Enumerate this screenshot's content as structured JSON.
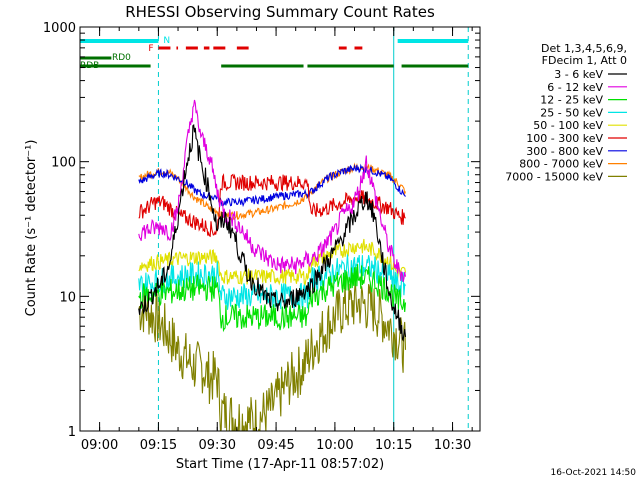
{
  "chart_data": {
    "type": "line",
    "title": "RHESSI Observing Summary Count Rates",
    "xlabel": "Start Time (17-Apr-11 08:57:02)",
    "ylabel": "Count Rate (s⁻¹ detector⁻¹)",
    "scale": "log",
    "xlim": [
      "08:55",
      "10:37"
    ],
    "ylim": [
      1,
      1000
    ],
    "xticks": [
      "09:00",
      "09:15",
      "09:30",
      "09:45",
      "10:00",
      "10:15",
      "10:30"
    ],
    "yticks": [
      "1",
      "10",
      "100",
      "1000"
    ],
    "legend_header": [
      "Det 1,3,4,5,6,9,",
      "FDecim 1, Att 0"
    ],
    "legend_position": "right",
    "timestamp": "16-Oct-2021 14:50",
    "state_bars": {
      "N": {
        "label": "N",
        "color": "#00e5e5",
        "segments": [
          [
            "08:55",
            "09:15"
          ],
          [
            "10:16",
            "10:34"
          ]
        ]
      },
      "F": {
        "label": "F",
        "color": "#e00000",
        "segments": [
          [
            "09:15",
            "09:20"
          ],
          [
            "09:22",
            "09:28"
          ],
          [
            "09:29",
            "09:33"
          ],
          [
            "09:35",
            "09:38"
          ],
          [
            "10:01",
            "10:03"
          ],
          [
            "10:05",
            "10:07"
          ]
        ]
      },
      "RD0": {
        "label": "RD0",
        "color": "#007000",
        "segments": [
          [
            "08:55",
            "09:03"
          ]
        ]
      },
      "RDB": {
        "label": "RDB",
        "color": "#007000",
        "segments": [
          [
            "08:55",
            "09:13"
          ],
          [
            "09:31",
            "09:52"
          ],
          [
            "09:53",
            "10:15"
          ],
          [
            "10:17",
            "10:34"
          ]
        ]
      }
    },
    "vlines": [
      "09:15",
      "10:15",
      "10:34"
    ],
    "series": [
      {
        "name": "3 - 6 keV",
        "color": "#000000",
        "x": [
          "09:10",
          "09:12",
          "09:14",
          "09:16",
          "09:18",
          "09:20",
          "09:22",
          "09:24",
          "09:26",
          "09:28",
          "09:30",
          "09:32",
          "09:34",
          "09:36",
          "09:38",
          "09:40",
          "09:42",
          "09:44",
          "09:46",
          "09:48",
          "09:50",
          "09:52",
          "09:54",
          "09:56",
          "09:58",
          "10:00",
          "10:02",
          "10:04",
          "10:06",
          "10:08",
          "10:10",
          "10:12",
          "10:14",
          "10:16",
          "10:18"
        ],
        "values": [
          8,
          9,
          11,
          13,
          18,
          40,
          90,
          170,
          95,
          60,
          32,
          38,
          30,
          20,
          14,
          12,
          10,
          9,
          9,
          9,
          10,
          11,
          12,
          15,
          18,
          22,
          28,
          35,
          45,
          55,
          40,
          20,
          10,
          7,
          5
        ]
      },
      {
        "name": "6 - 12 keV",
        "color": "#e000e0",
        "x": [
          "09:10",
          "09:12",
          "09:14",
          "09:16",
          "09:18",
          "09:20",
          "09:22",
          "09:24",
          "09:26",
          "09:28",
          "09:30",
          "09:32",
          "09:34",
          "09:36",
          "09:38",
          "09:40",
          "09:42",
          "09:44",
          "09:46",
          "09:48",
          "09:50",
          "09:52",
          "09:54",
          "09:56",
          "09:58",
          "10:00",
          "10:02",
          "10:04",
          "10:06",
          "10:08",
          "10:10",
          "10:12",
          "10:14",
          "10:16",
          "10:18"
        ],
        "values": [
          30,
          31,
          32,
          33,
          30,
          45,
          120,
          270,
          150,
          110,
          60,
          40,
          38,
          32,
          26,
          22,
          20,
          18,
          17,
          17,
          17,
          18,
          19,
          21,
          25,
          30,
          40,
          45,
          60,
          100,
          60,
          35,
          22,
          16,
          14
        ]
      },
      {
        "name": "12 - 25 keV",
        "color": "#00e000",
        "x": [
          "09:10",
          "09:15",
          "09:20",
          "09:25",
          "09:30",
          "09:31",
          "09:35",
          "09:40",
          "09:45",
          "09:50",
          "09:53",
          "09:54",
          "09:58",
          "10:02",
          "10:06",
          "10:10",
          "10:14",
          "10:16",
          "10:18"
        ],
        "values": [
          10,
          10.5,
          11,
          11.5,
          11.5,
          7,
          7,
          7,
          7,
          7,
          7,
          10,
          11.5,
          13,
          14,
          13,
          11,
          9,
          9
        ]
      },
      {
        "name": "25 - 50 keV",
        "color": "#00e5e5",
        "x": [
          "09:10",
          "09:15",
          "09:20",
          "09:25",
          "09:30",
          "09:31",
          "09:35",
          "09:40",
          "09:45",
          "09:50",
          "09:53",
          "09:54",
          "09:58",
          "10:02",
          "10:06",
          "10:10",
          "10:14",
          "10:16",
          "10:18"
        ],
        "values": [
          12,
          13,
          14,
          14.5,
          14.5,
          10,
          10,
          10,
          10,
          10,
          10,
          13,
          14.5,
          16,
          17,
          16,
          14,
          12,
          12
        ]
      },
      {
        "name": "50 - 100 keV",
        "color": "#e0e000",
        "x": [
          "09:10",
          "09:15",
          "09:20",
          "09:25",
          "09:30",
          "09:31",
          "09:35",
          "09:40",
          "09:45",
          "09:50",
          "09:53",
          "09:54",
          "09:58",
          "10:02",
          "10:06",
          "10:10",
          "10:14",
          "10:16",
          "10:18"
        ],
        "values": [
          17,
          18,
          19,
          19.5,
          19.5,
          14,
          14,
          14,
          14,
          14,
          14,
          18,
          20,
          22,
          24,
          22,
          18,
          15,
          15
        ]
      },
      {
        "name": "100 - 300 keV",
        "color": "#e00000",
        "x": [
          "09:10",
          "09:12",
          "09:14",
          "09:16",
          "09:18",
          "09:20",
          "09:22",
          "09:24",
          "09:26",
          "09:28",
          "09:30",
          "09:31",
          "09:35",
          "09:40",
          "09:45",
          "09:50",
          "09:53",
          "09:54",
          "09:58",
          "10:02",
          "10:06",
          "10:10",
          "10:14",
          "10:16",
          "10:18"
        ],
        "values": [
          42,
          45,
          50,
          50,
          45,
          40,
          38,
          36,
          34,
          32,
          30,
          70,
          70,
          70,
          70,
          70,
          70,
          42,
          45,
          50,
          55,
          50,
          45,
          40,
          38
        ]
      },
      {
        "name": "300 - 800 keV",
        "color": "#0000e0",
        "x": [
          "09:10",
          "09:12",
          "09:14",
          "09:16",
          "09:18",
          "09:20",
          "09:22",
          "09:24",
          "09:26",
          "09:28",
          "09:30",
          "09:31",
          "09:35",
          "09:40",
          "09:45",
          "09:50",
          "09:53",
          "09:54",
          "09:58",
          "10:02",
          "10:06",
          "10:10",
          "10:14",
          "10:16",
          "10:18"
        ],
        "values": [
          70,
          75,
          80,
          82,
          80,
          75,
          70,
          62,
          57,
          55,
          55,
          50,
          50,
          52,
          55,
          57,
          58,
          60,
          75,
          85,
          90,
          85,
          75,
          65,
          55
        ]
      },
      {
        "name": "800 - 7000 keV",
        "color": "#ff8000",
        "x": [
          "09:10",
          "09:12",
          "09:14",
          "09:16",
          "09:18",
          "09:20",
          "09:22",
          "09:24",
          "09:26",
          "09:28",
          "09:30",
          "09:31",
          "09:35",
          "09:40",
          "09:45",
          "09:50",
          "09:53",
          "09:54",
          "09:58",
          "10:02",
          "10:06",
          "10:10",
          "10:14",
          "10:16",
          "10:18"
        ],
        "values": [
          75,
          80,
          83,
          85,
          82,
          75,
          65,
          55,
          50,
          45,
          43,
          40,
          40,
          42,
          45,
          50,
          55,
          60,
          75,
          85,
          92,
          88,
          78,
          70,
          60
        ]
      },
      {
        "name": "7000 - 15000 keV",
        "color": "#808000",
        "x": [
          "09:10",
          "09:12",
          "09:14",
          "09:16",
          "09:18",
          "09:20",
          "09:22",
          "09:24",
          "09:26",
          "09:28",
          "09:30",
          "09:31",
          "09:33",
          "09:36",
          "09:40",
          "09:44",
          "09:48",
          "09:52",
          "09:54",
          "09:56",
          "09:58",
          "10:00",
          "10:02",
          "10:04",
          "10:06",
          "10:08",
          "10:10",
          "10:12",
          "10:14",
          "10:16",
          "10:18"
        ],
        "values": [
          8,
          8,
          7,
          6,
          5,
          4,
          3.5,
          3,
          3,
          2.5,
          2.5,
          1.4,
          1.3,
          1.2,
          1.2,
          1.5,
          2.3,
          3,
          4,
          5,
          6,
          7,
          8,
          8.5,
          9,
          8.5,
          8,
          7,
          6,
          5,
          4
        ]
      }
    ]
  }
}
